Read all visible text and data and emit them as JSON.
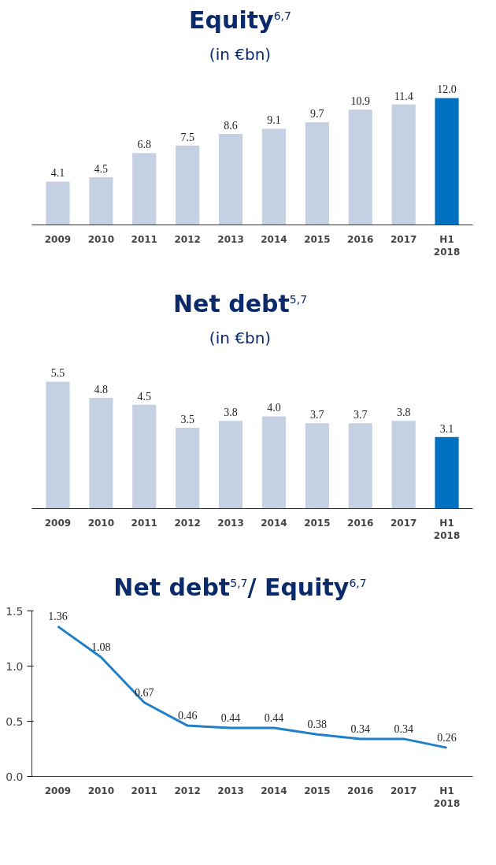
{
  "chart_data": [
    {
      "type": "bar",
      "title": "Equity$^{6,7}$",
      "subtitle": "(in €bn)",
      "categories": [
        "2009",
        "2010",
        "2011",
        "2012",
        "2013",
        "2014",
        "2015",
        "2016",
        "2017",
        "H1\n2018"
      ],
      "values": [
        4.1,
        4.5,
        6.8,
        7.5,
        8.6,
        9.1,
        9.7,
        10.9,
        11.4,
        12.0
      ],
      "value_labels": [
        "4.1",
        "4.5",
        "6.8",
        "7.5",
        "8.6",
        "9.1",
        "9.7",
        "10.9",
        "11.4",
        "12.0"
      ],
      "colors": [
        "#c5d0e3",
        "#c5d0e3",
        "#c5d0e3",
        "#c5d0e3",
        "#c5d0e3",
        "#c5d0e3",
        "#c5d0e3",
        "#c5d0e3",
        "#c5d0e3",
        "#0070c0"
      ]
    },
    {
      "type": "bar",
      "title": "Net debt$^{5,7}$",
      "subtitle": "(in €bn)",
      "categories": [
        "2009",
        "2010",
        "2011",
        "2012",
        "2013",
        "2014",
        "2015",
        "2016",
        "2017",
        "H1\n2018"
      ],
      "values": [
        5.5,
        4.8,
        4.5,
        3.5,
        3.8,
        4.0,
        3.7,
        3.7,
        3.8,
        3.1
      ],
      "value_labels": [
        "5.5",
        "4.8",
        "4.5",
        "3.5",
        "3.8",
        "4.0",
        "3.7",
        "3.7",
        "3.8",
        "3.1"
      ],
      "colors": [
        "#c5d0e3",
        "#c5d0e3",
        "#c5d0e3",
        "#c5d0e3",
        "#c5d0e3",
        "#c5d0e3",
        "#c5d0e3",
        "#c5d0e3",
        "#c5d0e3",
        "#0070c0"
      ]
    },
    {
      "type": "line",
      "title": "Net debt$^{5,7}$/ Equity$^{6,7}$",
      "categories": [
        "2009",
        "2010",
        "2011",
        "2012",
        "2013",
        "2014",
        "2015",
        "2016",
        "2017",
        "H1\n2018"
      ],
      "series": [
        {
          "color": "#1f7fc8",
          "values": [
            1.36,
            1.08,
            0.67,
            0.46,
            0.44,
            0.44,
            0.38,
            0.34,
            0.34,
            0.26
          ]
        }
      ],
      "data_labels": true,
      "ylim": [
        0,
        1.5
      ],
      "yticks": [
        {
          "value": 0,
          "label": "0.0"
        },
        {
          "value": 0.5,
          "label": "0.5"
        },
        {
          "value": 1.0,
          "label": "1.0"
        },
        {
          "value": 1.5,
          "label": "1.5"
        }
      ],
      "grid": false,
      "marker": "none",
      "line_style": "solid"
    }
  ]
}
